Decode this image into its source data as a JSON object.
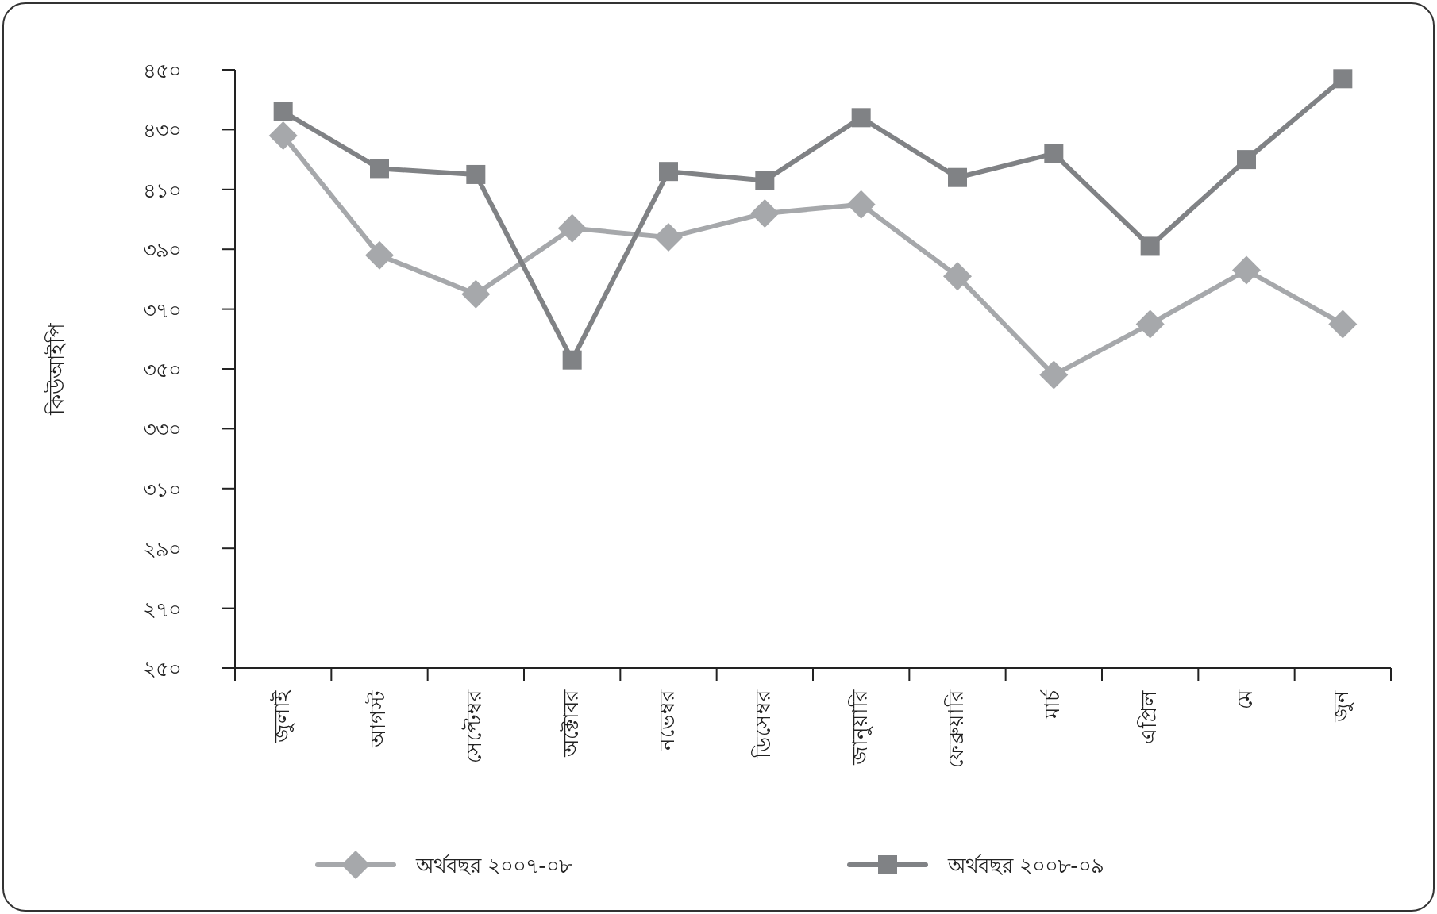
{
  "chart_data": {
    "type": "line",
    "ylabel": "কিউআইপি",
    "categories": [
      "জুলাই",
      "আগস্ট",
      "সেপ্টেম্বর",
      "অক্টোবর",
      "নভেম্বর",
      "ডিসেম্বর",
      "জানুয়ারি",
      "ফেব্রুয়ারি",
      "মার্চ",
      "এপ্রিল",
      "মে",
      "জুন"
    ],
    "series": [
      {
        "name": "অর্থবছর ২০০৭-০৮",
        "color": "#a6a8ab",
        "marker": "diamond",
        "values": [
          428,
          388,
          375,
          397,
          394,
          402,
          405,
          381,
          348,
          365,
          383,
          365
        ]
      },
      {
        "name": "অর্থবছর ২০০৮-০৯",
        "color": "#808285",
        "marker": "square",
        "values": [
          436,
          417,
          415,
          353,
          416,
          413,
          434,
          414,
          422,
          391,
          420,
          447
        ]
      }
    ],
    "ylim": [
      250,
      450
    ],
    "yticks": [
      {
        "value": 250,
        "label": "২৫০"
      },
      {
        "value": 270,
        "label": "২৭০"
      },
      {
        "value": 290,
        "label": "২৯০"
      },
      {
        "value": 310,
        "label": "৩১০"
      },
      {
        "value": 330,
        "label": "৩৩০"
      },
      {
        "value": 350,
        "label": "৩৫০"
      },
      {
        "value": 370,
        "label": "৩৭০"
      },
      {
        "value": 390,
        "label": "৩৯০"
      },
      {
        "value": 410,
        "label": "৪১০"
      },
      {
        "value": 430,
        "label": "৪৩০"
      },
      {
        "value": 450,
        "label": "৪৫০"
      }
    ],
    "grid": false,
    "legend": "bottom",
    "line_style": "solid"
  }
}
